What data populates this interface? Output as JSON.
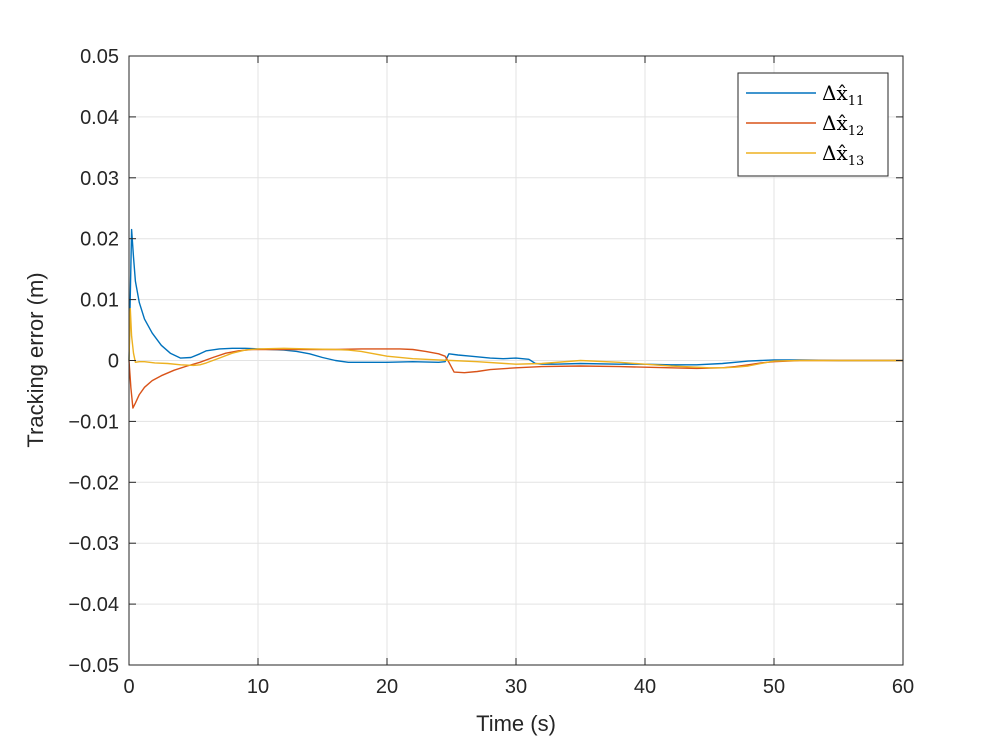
{
  "chart_data": {
    "type": "line",
    "xlabel": "Time (s)",
    "ylabel": "Tracking error (m)",
    "xlim": [
      0,
      60
    ],
    "ylim": [
      -0.05,
      0.05
    ],
    "xticks": [
      0,
      10,
      20,
      30,
      40,
      50,
      60
    ],
    "xtick_labels": [
      "0",
      "10",
      "20",
      "30",
      "40",
      "50",
      "60"
    ],
    "yticks": [
      -0.05,
      -0.04,
      -0.03,
      -0.02,
      -0.01,
      0,
      0.01,
      0.02,
      0.03,
      0.04,
      0.05
    ],
    "ytick_labels": [
      "−0.05",
      "−0.04",
      "−0.03",
      "−0.02",
      "−0.01",
      "0",
      "0.01",
      "0.02",
      "0.03",
      "0.04",
      "0.05"
    ],
    "grid": true,
    "legend_position": "top-right",
    "series": [
      {
        "name": "Δx̂",
        "subscript": "11",
        "color": "#0072BD",
        "x": [
          0,
          0.2,
          0.35,
          0.5,
          0.8,
          1.2,
          1.8,
          2.5,
          3.2,
          4.0,
          4.8,
          5.5,
          6.0,
          7.0,
          8.0,
          9.0,
          10.0,
          11.0,
          12.0,
          13.0,
          14.0,
          15.0,
          16.0,
          17.0,
          18.0,
          20.0,
          22.0,
          24.0,
          24.5,
          24.8,
          25.5,
          26.5,
          28.0,
          29.0,
          30.0,
          31.0,
          31.5,
          32.0,
          33.0,
          35.0,
          38.0,
          40.0,
          42.0,
          44.0,
          46.0,
          48.0,
          49.0,
          50.0,
          52.0,
          55.0,
          58.0,
          60.0
        ],
        "y": [
          0.0,
          0.0215,
          0.017,
          0.013,
          0.0095,
          0.0068,
          0.0045,
          0.0025,
          0.0012,
          0.0004,
          0.0005,
          0.0011,
          0.0016,
          0.0019,
          0.002,
          0.002,
          0.0019,
          0.0018,
          0.0017,
          0.0015,
          0.0011,
          0.0005,
          0.0,
          -0.0003,
          -0.0003,
          -0.0003,
          -0.0002,
          -0.0003,
          -0.0002,
          0.0011,
          0.0009,
          0.0007,
          0.0004,
          0.0003,
          0.0004,
          0.0002,
          -0.0005,
          -0.0006,
          -0.0006,
          -0.0005,
          -0.0006,
          -0.0006,
          -0.0007,
          -0.0007,
          -0.0005,
          -0.0001,
          0.0,
          0.0001,
          0.0001,
          0.0,
          0.0,
          0.0
        ]
      },
      {
        "name": "Δx̂",
        "subscript": "12",
        "color": "#D95319",
        "x": [
          0,
          0.15,
          0.3,
          0.5,
          0.8,
          1.2,
          1.8,
          2.5,
          3.5,
          4.5,
          5.5,
          6.5,
          7.5,
          8.5,
          9.5,
          10.0,
          12.0,
          14.0,
          16.0,
          18.0,
          20.0,
          21.0,
          22.0,
          23.0,
          24.0,
          24.5,
          24.8,
          25.2,
          26.0,
          27.0,
          28.0,
          30.0,
          32.0,
          35.0,
          38.0,
          40.0,
          42.0,
          44.0,
          46.0,
          47.0,
          48.0,
          49.0,
          50.0,
          52.0,
          55.0,
          60.0
        ],
        "y": [
          0.0,
          -0.0045,
          -0.0078,
          -0.007,
          -0.0056,
          -0.0044,
          -0.0033,
          -0.0025,
          -0.0016,
          -0.0009,
          -0.0003,
          0.0005,
          0.0012,
          0.0016,
          0.0018,
          0.0018,
          0.0018,
          0.0018,
          0.0018,
          0.0019,
          0.0019,
          0.0019,
          0.0018,
          0.0015,
          0.0011,
          0.0007,
          -0.0003,
          -0.0019,
          -0.002,
          -0.0018,
          -0.0015,
          -0.0012,
          -0.001,
          -0.0009,
          -0.001,
          -0.0011,
          -0.0012,
          -0.0013,
          -0.0012,
          -0.001,
          -0.0007,
          -0.0004,
          -0.0002,
          0.0,
          0.0,
          0.0
        ]
      },
      {
        "name": "Δx̂",
        "subscript": "13",
        "color": "#EDB120",
        "x": [
          0,
          0.1,
          0.2,
          0.35,
          0.5,
          0.8,
          1.2,
          2.0,
          3.0,
          4.0,
          5.0,
          5.5,
          6.0,
          7.0,
          8.0,
          9.0,
          10.0,
          12.0,
          14.0,
          16.0,
          17.0,
          18.0,
          19.0,
          20.0,
          22.0,
          24.0,
          25.0,
          27.0,
          30.0,
          32.0,
          35.0,
          38.0,
          40.0,
          42.0,
          44.0,
          45.0,
          46.0,
          47.0,
          48.0,
          49.0,
          50.0,
          52.0,
          55.0,
          60.0
        ],
        "y": [
          0.0,
          0.0085,
          0.004,
          0.0012,
          -0.0003,
          -0.0002,
          -0.0002,
          -0.0004,
          -0.0005,
          -0.0007,
          -0.0008,
          -0.0007,
          -0.0004,
          0.0004,
          0.0012,
          0.0017,
          0.0019,
          0.002,
          0.0019,
          0.0018,
          0.0017,
          0.0015,
          0.0011,
          0.0007,
          0.0003,
          0.0001,
          0.0,
          -0.0002,
          -0.0006,
          -0.0005,
          0.0,
          -0.0003,
          -0.0006,
          -0.0009,
          -0.0011,
          -0.0012,
          -0.0012,
          -0.0011,
          -0.0009,
          -0.0005,
          -0.0001,
          0.0,
          0.0,
          0.0
        ]
      }
    ]
  }
}
